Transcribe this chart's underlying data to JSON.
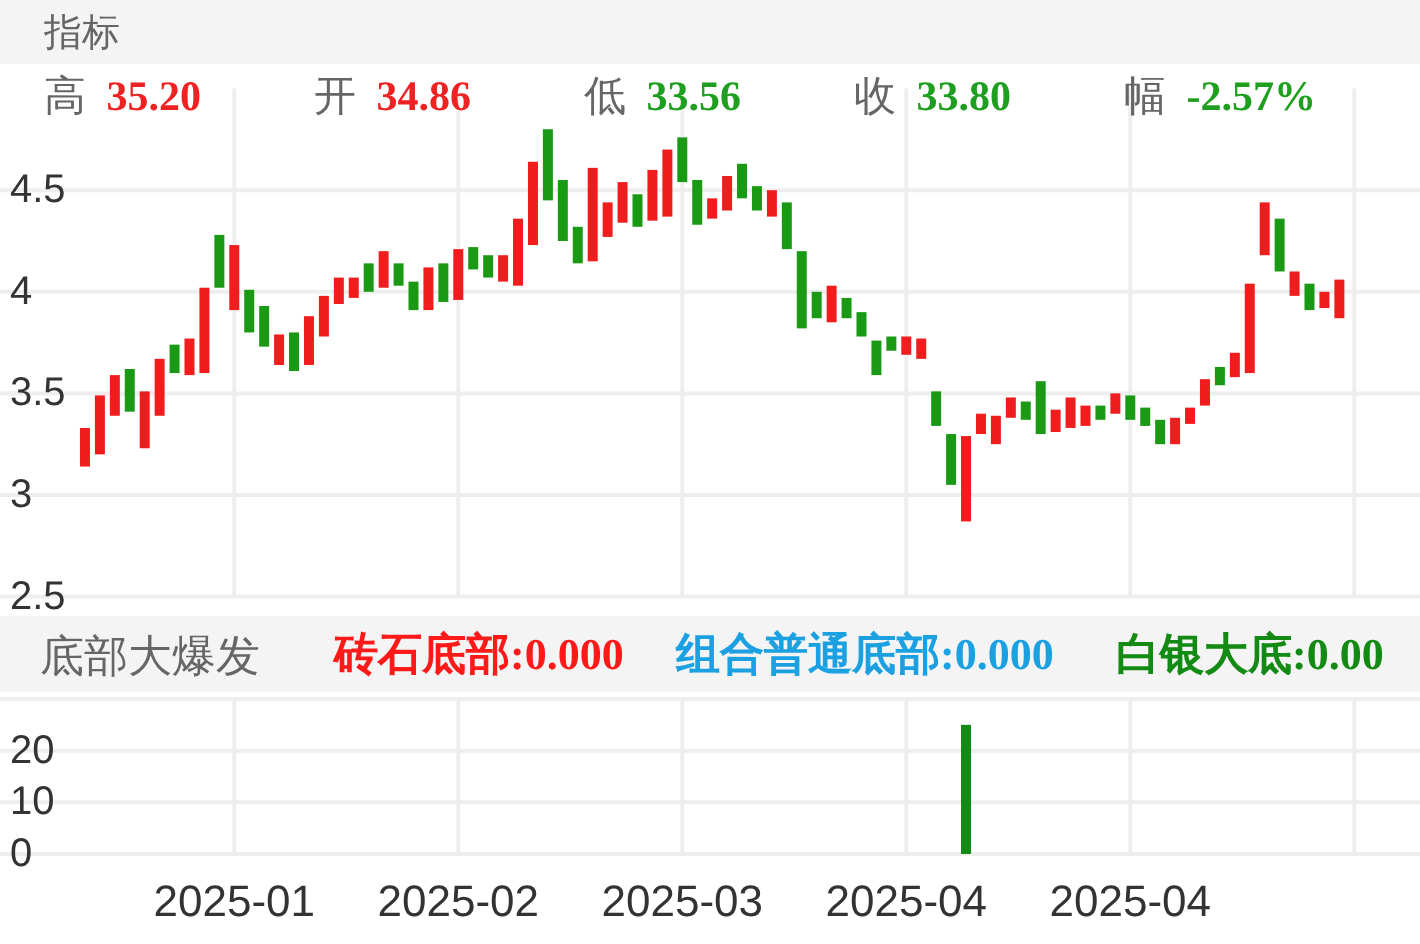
{
  "chart_data": [
    {
      "type": "candlestick",
      "title": "指标",
      "annotations": [
        "高 35.20",
        "开 34.86",
        "低 33.56",
        "收 33.80",
        "幅 -2.57%"
      ],
      "categories": [
        null,
        null,
        null,
        null,
        null,
        null,
        null,
        null,
        null,
        null,
        "2025-01",
        null,
        null,
        null,
        null,
        null,
        null,
        null,
        null,
        null,
        null,
        null,
        null,
        null,
        null,
        "2025-02",
        null,
        null,
        null,
        null,
        null,
        null,
        null,
        null,
        null,
        null,
        null,
        null,
        null,
        null,
        "2025-03",
        null,
        null,
        null,
        null,
        null,
        null,
        null,
        null,
        null,
        null,
        null,
        null,
        null,
        null,
        "2025-04",
        null,
        null,
        null,
        null,
        null,
        null,
        null,
        null,
        null,
        null,
        null,
        null,
        null,
        null,
        "2025-04",
        null,
        null,
        null,
        null,
        null,
        null,
        null,
        null,
        null,
        null,
        null,
        null,
        null,
        null
      ],
      "ohlc": [
        [
          3.14,
          3.33,
          3.14,
          3.33
        ],
        [
          3.2,
          3.49,
          3.2,
          3.49
        ],
        [
          3.39,
          3.59,
          3.39,
          3.59
        ],
        [
          3.62,
          3.62,
          3.41,
          3.41
        ],
        [
          3.23,
          3.51,
          3.23,
          3.51
        ],
        [
          3.39,
          3.67,
          3.39,
          3.67
        ],
        [
          3.74,
          3.74,
          3.6,
          3.6
        ],
        [
          3.59,
          3.77,
          3.59,
          3.77
        ],
        [
          3.6,
          4.02,
          3.6,
          4.02
        ],
        [
          4.28,
          4.28,
          4.02,
          4.02
        ],
        [
          3.91,
          4.23,
          3.91,
          4.23
        ],
        [
          4.01,
          4.01,
          3.8,
          3.8
        ],
        [
          3.93,
          3.93,
          3.73,
          3.73
        ],
        [
          3.64,
          3.79,
          3.64,
          3.79
        ],
        [
          3.8,
          3.8,
          3.61,
          3.61
        ],
        [
          3.64,
          3.88,
          3.64,
          3.88
        ],
        [
          3.78,
          3.98,
          3.78,
          3.98
        ],
        [
          3.94,
          4.07,
          3.94,
          4.07
        ],
        [
          3.97,
          4.07,
          3.97,
          4.07
        ],
        [
          4.14,
          4.14,
          4.0,
          4.0
        ],
        [
          4.02,
          4.2,
          4.02,
          4.2
        ],
        [
          4.14,
          4.14,
          4.03,
          4.03
        ],
        [
          4.05,
          4.05,
          3.91,
          3.91
        ],
        [
          3.91,
          4.12,
          3.91,
          4.12
        ],
        [
          4.14,
          4.14,
          3.95,
          3.95
        ],
        [
          3.96,
          4.21,
          3.96,
          4.21
        ],
        [
          4.22,
          4.22,
          4.11,
          4.11
        ],
        [
          4.18,
          4.18,
          4.07,
          4.07
        ],
        [
          4.05,
          4.18,
          4.05,
          4.18
        ],
        [
          4.03,
          4.36,
          4.03,
          4.36
        ],
        [
          4.23,
          4.64,
          4.23,
          4.64
        ],
        [
          4.8,
          4.8,
          4.45,
          4.45
        ],
        [
          4.55,
          4.55,
          4.25,
          4.25
        ],
        [
          4.32,
          4.32,
          4.14,
          4.14
        ],
        [
          4.15,
          4.61,
          4.15,
          4.61
        ],
        [
          4.27,
          4.44,
          4.27,
          4.44
        ],
        [
          4.34,
          4.54,
          4.34,
          4.54
        ],
        [
          4.48,
          4.48,
          4.32,
          4.32
        ],
        [
          4.35,
          4.6,
          4.35,
          4.6
        ],
        [
          4.37,
          4.7,
          4.37,
          4.7
        ],
        [
          4.76,
          4.76,
          4.54,
          4.54
        ],
        [
          4.55,
          4.55,
          4.33,
          4.33
        ],
        [
          4.36,
          4.46,
          4.36,
          4.46
        ],
        [
          4.4,
          4.57,
          4.4,
          4.57
        ],
        [
          4.63,
          4.63,
          4.46,
          4.46
        ],
        [
          4.52,
          4.52,
          4.4,
          4.4
        ],
        [
          4.37,
          4.5,
          4.37,
          4.5
        ],
        [
          4.44,
          4.44,
          4.21,
          4.21
        ],
        [
          4.2,
          4.2,
          3.82,
          3.82
        ],
        [
          4.0,
          4.0,
          3.87,
          3.87
        ],
        [
          3.85,
          4.03,
          3.85,
          4.03
        ],
        [
          3.97,
          3.97,
          3.87,
          3.87
        ],
        [
          3.9,
          3.9,
          3.78,
          3.78
        ],
        [
          3.76,
          3.76,
          3.59,
          3.59
        ],
        [
          3.78,
          3.78,
          3.71,
          3.71
        ],
        [
          3.69,
          3.78,
          3.69,
          3.78
        ],
        [
          3.67,
          3.77,
          3.67,
          3.77
        ],
        [
          3.51,
          3.51,
          3.34,
          3.34
        ],
        [
          3.3,
          3.3,
          3.05,
          3.05
        ],
        [
          2.87,
          3.29,
          2.87,
          3.29
        ],
        [
          3.3,
          3.4,
          3.3,
          3.4
        ],
        [
          3.25,
          3.39,
          3.25,
          3.39
        ],
        [
          3.38,
          3.48,
          3.38,
          3.48
        ],
        [
          3.46,
          3.46,
          3.37,
          3.37
        ],
        [
          3.56,
          3.56,
          3.3,
          3.3
        ],
        [
          3.31,
          3.42,
          3.31,
          3.42
        ],
        [
          3.33,
          3.48,
          3.33,
          3.48
        ],
        [
          3.34,
          3.44,
          3.34,
          3.44
        ],
        [
          3.44,
          3.44,
          3.37,
          3.37
        ],
        [
          3.4,
          3.5,
          3.4,
          3.5
        ],
        [
          3.49,
          3.49,
          3.37,
          3.37
        ],
        [
          3.43,
          3.43,
          3.34,
          3.34
        ],
        [
          3.37,
          3.37,
          3.25,
          3.25
        ],
        [
          3.25,
          3.38,
          3.25,
          3.38
        ],
        [
          3.35,
          3.43,
          3.35,
          3.43
        ],
        [
          3.44,
          3.57,
          3.44,
          3.57
        ],
        [
          3.63,
          3.63,
          3.54,
          3.54
        ],
        [
          3.58,
          3.7,
          3.58,
          3.7
        ],
        [
          3.6,
          4.04,
          3.6,
          4.04
        ],
        [
          4.18,
          4.44,
          4.18,
          4.44
        ],
        [
          4.36,
          4.36,
          4.1,
          4.1
        ],
        [
          3.98,
          4.1,
          3.98,
          4.1
        ],
        [
          4.04,
          4.04,
          3.91,
          3.91
        ],
        [
          3.92,
          4.0,
          3.92,
          4.0
        ],
        [
          3.87,
          4.06,
          3.87,
          4.06
        ]
      ],
      "colors": [
        "#ef1d1d",
        "#ef1d1d",
        "#ef1d1d",
        "#1a9a14",
        "#ef1d1d",
        "#ef1d1d",
        "#1a9a14",
        "#ef1d1d",
        "#ef1d1d",
        "#1a9a14",
        "#ef1d1d",
        "#1a9a14",
        "#1a9a14",
        "#ef1d1d",
        "#1a9a14",
        "#ef1d1d",
        "#ef1d1d",
        "#ef1d1d",
        "#ef1d1d",
        "#1a9a14",
        "#ef1d1d",
        "#1a9a14",
        "#1a9a14",
        "#ef1d1d",
        "#1a9a14",
        "#ef1d1d",
        "#1a9a14",
        "#1a9a14",
        "#ef1d1d",
        "#ef1d1d",
        "#ef1d1d",
        "#1a9a14",
        "#1a9a14",
        "#1a9a14",
        "#ef1d1d",
        "#ef1d1d",
        "#ef1d1d",
        "#1a9a14",
        "#ef1d1d",
        "#ef1d1d",
        "#1a9a14",
        "#1a9a14",
        "#ef1d1d",
        "#ef1d1d",
        "#1a9a14",
        "#1a9a14",
        "#ef1d1d",
        "#1a9a14",
        "#1a9a14",
        "#1a9a14",
        "#ef1d1d",
        "#1a9a14",
        "#1a9a14",
        "#1a9a14",
        "#1a9a14",
        "#ef1d1d",
        "#ef1d1d",
        "#1a9a14",
        "#1a9a14",
        "#ef1d1d",
        "#ef1d1d",
        "#ef1d1d",
        "#ef1d1d",
        "#1a9a14",
        "#1a9a14",
        "#ef1d1d",
        "#ef1d1d",
        "#ef1d1d",
        "#1a9a14",
        "#ef1d1d",
        "#1a9a14",
        "#1a9a14",
        "#1a9a14",
        "#ef1d1d",
        "#ef1d1d",
        "#ef1d1d",
        "#1a9a14",
        "#ef1d1d",
        "#ef1d1d",
        "#ef1d1d",
        "#1a9a14",
        "#ef1d1d",
        "#1a9a14",
        "#ef1d1d",
        "#ef1d1d"
      ],
      "ylim": [
        2.5,
        5
      ],
      "yticks": [
        2.5,
        3,
        3.5,
        4,
        4.5
      ],
      "grid": true,
      "tick_labels": "y"
    },
    {
      "type": "bar",
      "title": "底部大爆发",
      "categories": [
        null,
        null,
        null,
        null,
        null,
        null,
        null,
        null,
        null,
        null,
        "2025-01",
        null,
        null,
        null,
        null,
        null,
        null,
        null,
        null,
        null,
        null,
        null,
        null,
        null,
        null,
        "2025-02",
        null,
        null,
        null,
        null,
        null,
        null,
        null,
        null,
        null,
        null,
        null,
        null,
        null,
        null,
        "2025-03",
        null,
        null,
        null,
        null,
        null,
        null,
        null,
        null,
        null,
        null,
        null,
        null,
        null,
        null,
        "2025-04",
        null,
        null,
        null,
        null,
        null,
        null,
        null,
        null,
        null,
        null,
        null,
        null,
        null,
        null,
        "2025-04",
        null,
        null,
        null,
        null,
        null,
        null,
        null,
        null,
        null,
        null,
        null,
        null,
        null,
        null
      ],
      "series": [
        {
          "name": "砖石底部:0.000",
          "color": "#ff1a1a",
          "values": [
            null,
            null,
            null,
            null,
            null,
            null,
            null,
            null,
            null,
            null,
            null,
            null,
            null,
            null,
            null,
            null,
            null,
            null,
            null,
            null,
            null,
            null,
            null,
            null,
            null,
            null,
            null,
            null,
            null,
            null,
            null,
            null,
            null,
            null,
            null,
            null,
            null,
            null,
            null,
            null,
            null,
            null,
            null,
            null,
            null,
            null,
            null,
            null,
            null,
            null,
            null,
            null,
            null,
            null,
            null,
            null,
            null,
            null,
            null,
            null,
            null,
            null,
            null,
            null,
            null,
            null,
            null,
            null,
            null,
            null,
            null,
            null,
            null,
            null,
            null,
            null,
            null,
            null,
            null,
            null,
            null,
            null,
            null,
            null,
            null
          ]
        },
        {
          "name": "组合普通底部:0.000",
          "color": "#1ba1e2",
          "values": [
            null,
            null,
            null,
            null,
            null,
            null,
            null,
            null,
            null,
            null,
            null,
            null,
            null,
            null,
            null,
            null,
            null,
            null,
            null,
            null,
            null,
            null,
            null,
            null,
            null,
            null,
            null,
            null,
            null,
            null,
            null,
            null,
            null,
            null,
            null,
            null,
            null,
            null,
            null,
            null,
            null,
            null,
            null,
            null,
            null,
            null,
            null,
            null,
            null,
            null,
            null,
            null,
            null,
            null,
            null,
            null,
            null,
            null,
            null,
            null,
            null,
            null,
            null,
            null,
            null,
            null,
            null,
            null,
            null,
            null,
            null,
            null,
            null,
            null,
            null,
            null,
            null,
            null,
            null,
            null,
            null,
            null,
            null,
            null,
            null
          ]
        },
        {
          "name": "白银大底:0.00",
          "color": "#138a13",
          "values": [
            null,
            null,
            null,
            null,
            null,
            null,
            null,
            null,
            null,
            null,
            null,
            null,
            null,
            null,
            null,
            null,
            null,
            null,
            null,
            null,
            null,
            null,
            null,
            null,
            null,
            null,
            null,
            null,
            null,
            null,
            null,
            null,
            null,
            null,
            null,
            null,
            null,
            null,
            null,
            null,
            null,
            null,
            null,
            null,
            null,
            null,
            null,
            null,
            null,
            null,
            null,
            null,
            null,
            null,
            null,
            null,
            null,
            null,
            null,
            25,
            null,
            null,
            null,
            null,
            null,
            null,
            null,
            null,
            null,
            null,
            null,
            null,
            null,
            null,
            null,
            null,
            null,
            null,
            null,
            null,
            null,
            null,
            null,
            null,
            null
          ]
        }
      ],
      "legend": "top",
      "ylim": [
        0,
        30
      ],
      "yticks": [
        0,
        10,
        20,
        {
          "value": 30,
          "label": null
        }
      ],
      "grid": true
    }
  ]
}
